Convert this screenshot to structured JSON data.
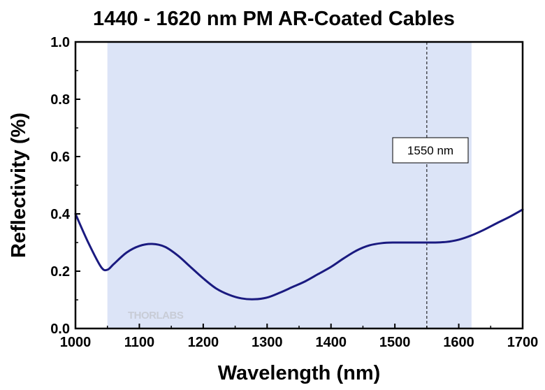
{
  "chart_data": {
    "type": "line",
    "title": "1440 - 1620 nm PM AR-Coated Cables",
    "xlabel": "Wavelength (nm)",
    "ylabel": "Reflectivity (%)",
    "xlim": [
      1000,
      1700
    ],
    "ylim": [
      0.0,
      1.0
    ],
    "x_ticks": [
      "1000",
      "1100",
      "1200",
      "1300",
      "1400",
      "1500",
      "1600",
      "1700"
    ],
    "y_ticks": [
      "0.0",
      "0.2",
      "0.4",
      "0.6",
      "0.8",
      "1.0"
    ],
    "grid": false,
    "legend": "none",
    "highlight_band": [
      1050,
      1620
    ],
    "vertical_marker": {
      "x": 1550,
      "label": "1550 nm"
    },
    "watermark": "THORLABS",
    "series": [
      {
        "color": "#1a1a80",
        "x": [
          1000,
          1020,
          1040,
          1050,
          1060,
          1080,
          1100,
          1120,
          1140,
          1160,
          1180,
          1200,
          1220,
          1240,
          1260,
          1280,
          1300,
          1320,
          1340,
          1360,
          1380,
          1400,
          1420,
          1440,
          1460,
          1480,
          1500,
          1520,
          1540,
          1560,
          1580,
          1600,
          1620,
          1640,
          1660,
          1680,
          1700
        ],
        "y": [
          0.4,
          0.3,
          0.215,
          0.205,
          0.225,
          0.265,
          0.288,
          0.295,
          0.285,
          0.255,
          0.215,
          0.175,
          0.14,
          0.118,
          0.105,
          0.102,
          0.108,
          0.125,
          0.145,
          0.165,
          0.19,
          0.215,
          0.245,
          0.272,
          0.29,
          0.298,
          0.3,
          0.3,
          0.3,
          0.3,
          0.302,
          0.31,
          0.325,
          0.345,
          0.368,
          0.39,
          0.415
        ]
      }
    ],
    "colors": {
      "band": "#dce4f7",
      "line": "#1a1a80",
      "marker": "#000000"
    }
  }
}
